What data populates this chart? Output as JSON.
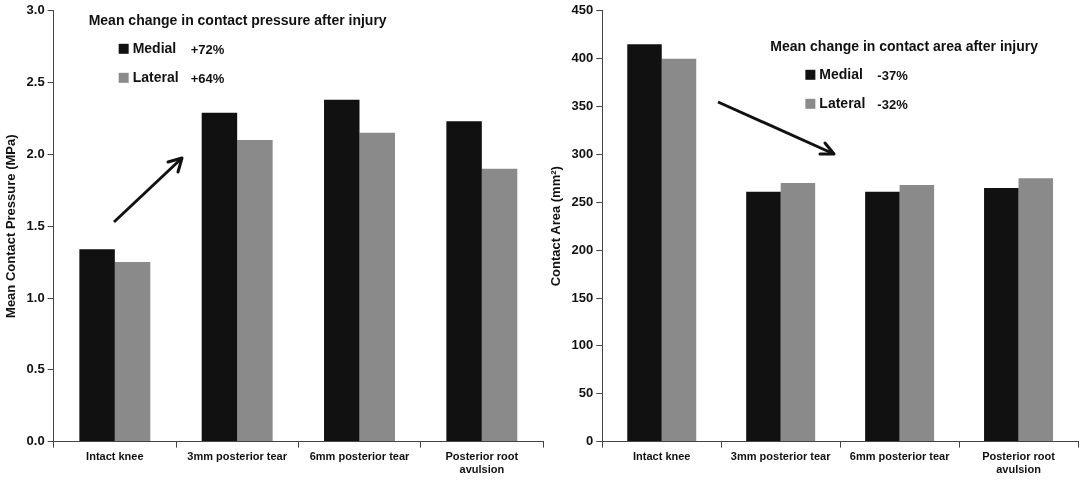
{
  "chart_data": [
    {
      "type": "bar",
      "legend_title": "Mean change in contact pressure after injury",
      "ylabel": "Mean Contact Pressure (MPa)",
      "categories": [
        "Intact knee",
        "3mm posterior tear",
        "6mm posterior tear",
        "Posterior root avulsion"
      ],
      "series": [
        {
          "name": "Medial",
          "color": "#111111",
          "values": [
            1.34,
            2.29,
            2.38,
            2.23
          ]
        },
        {
          "name": "Lateral",
          "color": "#8a8a8a",
          "values": [
            1.25,
            2.1,
            2.15,
            1.9
          ]
        }
      ],
      "annotations": [
        "+72%",
        "+64%"
      ],
      "ylim": [
        0,
        3
      ],
      "yticks": [
        {
          "value": 0,
          "label": "0.0"
        },
        {
          "value": 0.5,
          "label": "0.5"
        },
        {
          "value": 1,
          "label": "1.0"
        },
        {
          "value": 1.5,
          "label": "1.5"
        },
        {
          "value": 2,
          "label": "2.0"
        },
        {
          "value": 2.5,
          "label": "2.5"
        },
        {
          "value": 3,
          "label": "3.0"
        }
      ],
      "grid": false,
      "legend": "top left"
    },
    {
      "type": "bar",
      "legend_title": "Mean change in contact area after injury",
      "ylabel": "Contact Area (mm²)",
      "categories": [
        "Intact knee",
        "3mm posterior tear",
        "6mm posterior tear",
        "Posterior root avulsion"
      ],
      "series": [
        {
          "name": "Medial",
          "color": "#111111",
          "values": [
            415,
            261,
            261,
            265
          ]
        },
        {
          "name": "Lateral",
          "color": "#8a8a8a",
          "values": [
            400,
            270,
            268,
            275
          ]
        }
      ],
      "annotations": [
        "-37%",
        "-32%"
      ],
      "ylim": [
        0,
        450
      ],
      "yticks": [
        0,
        50,
        100,
        150,
        200,
        250,
        300,
        350,
        400,
        450
      ],
      "grid": false,
      "legend": "top right"
    }
  ]
}
